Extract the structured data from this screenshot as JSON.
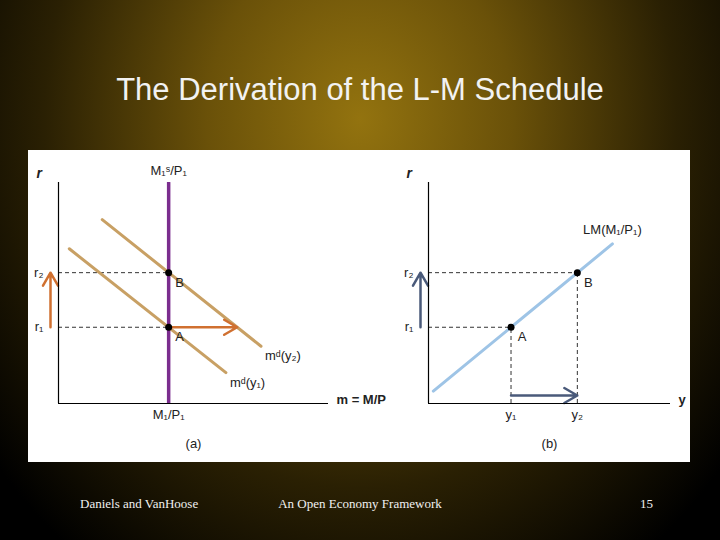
{
  "slide": {
    "title": "The Derivation of the L-M Schedule",
    "footer": [
      "Daniels and VanHoose",
      "An Open Economy Framework",
      "15"
    ]
  },
  "chart_data": [
    {
      "type": "line",
      "title": "(a)",
      "xlabel": "m = M/P",
      "ylabel": "r",
      "xlim": [
        0,
        10
      ],
      "ylim": [
        0,
        10
      ],
      "xticks": [
        {
          "value": 4.08,
          "label": "M₁/P₁"
        }
      ],
      "yticks": [
        {
          "value": 3.45,
          "label": "r₁"
        },
        {
          "value": 5.92,
          "label": "r₂"
        }
      ],
      "series": [
        {
          "name": "M₁ˢ/P₁",
          "color": "#7b2d8e",
          "x": [
            4.08,
            4.08
          ],
          "values": [
            0,
            10
          ]
        },
        {
          "name": "mᵈ(y₂)",
          "color": "#c8a064",
          "x": [
            1.62,
            7.5
          ],
          "values": [
            8.32,
            2.59
          ]
        },
        {
          "name": "mᵈ(y₁)",
          "color": "#c8a064",
          "x": [
            0.4,
            6.2
          ],
          "values": [
            7.0,
            1.4
          ]
        }
      ],
      "points": [
        {
          "label": "A",
          "x": 4.08,
          "y": 3.45
        },
        {
          "label": "B",
          "x": 4.08,
          "y": 5.92
        }
      ]
    },
    {
      "type": "line",
      "title": "(b)",
      "xlabel": "y",
      "ylabel": "r",
      "xlim": [
        0,
        10
      ],
      "ylim": [
        0,
        10
      ],
      "xticks": [
        {
          "value": 3.41,
          "label": "y₁"
        },
        {
          "value": 6.15,
          "label": "y₂"
        }
      ],
      "yticks": [
        {
          "value": 3.45,
          "label": "r₁"
        },
        {
          "value": 5.92,
          "label": "r₂"
        }
      ],
      "series": [
        {
          "name": "LM(M₁/P₁)",
          "color": "#9ec4e6",
          "x": [
            0.2,
            7.6
          ],
          "values": [
            0.56,
            7.22
          ]
        }
      ],
      "points": [
        {
          "label": "A",
          "x": 3.41,
          "y": 3.45
        },
        {
          "label": "B",
          "x": 6.15,
          "y": 5.92
        }
      ]
    }
  ]
}
